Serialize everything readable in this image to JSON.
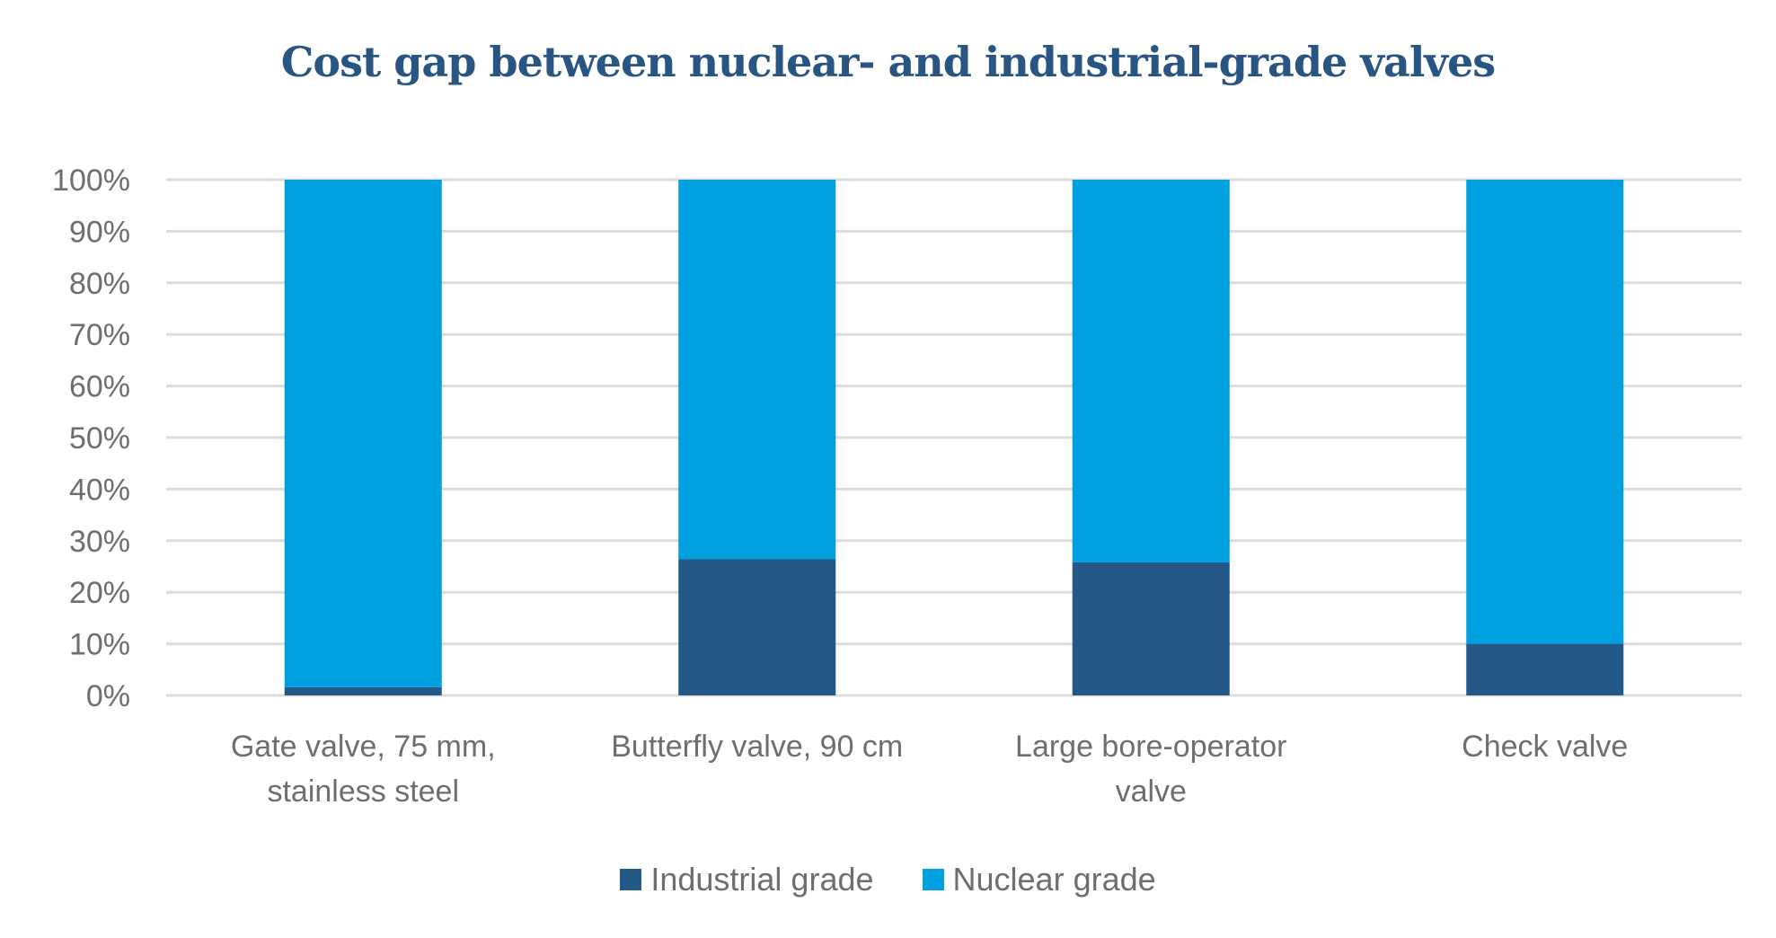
{
  "chart_data": {
    "type": "bar",
    "stacked": true,
    "title": "Cost gap between nuclear- and industrial-grade valves",
    "categories": [
      [
        "Gate valve, 75 mm,",
        "stainless steel"
      ],
      [
        "Butterfly valve, 90 cm"
      ],
      [
        "Large bore-operator",
        "valve"
      ],
      [
        "Check valve"
      ]
    ],
    "series": [
      {
        "name": "Industrial grade",
        "color": "#245886",
        "values": [
          1.6,
          26.4,
          25.8,
          10
        ]
      },
      {
        "name": "Nuclear grade",
        "color": "#009fe0",
        "values": [
          98.4,
          73.6,
          74.2,
          90
        ]
      }
    ],
    "yticks": [
      "0%",
      "10%",
      "20%",
      "30%",
      "40%",
      "50%",
      "60%",
      "70%",
      "80%",
      "90%",
      "100%"
    ],
    "ylim": [
      0,
      100
    ],
    "xlabel": "",
    "ylabel": "",
    "grid": true,
    "legend": "bottom"
  }
}
